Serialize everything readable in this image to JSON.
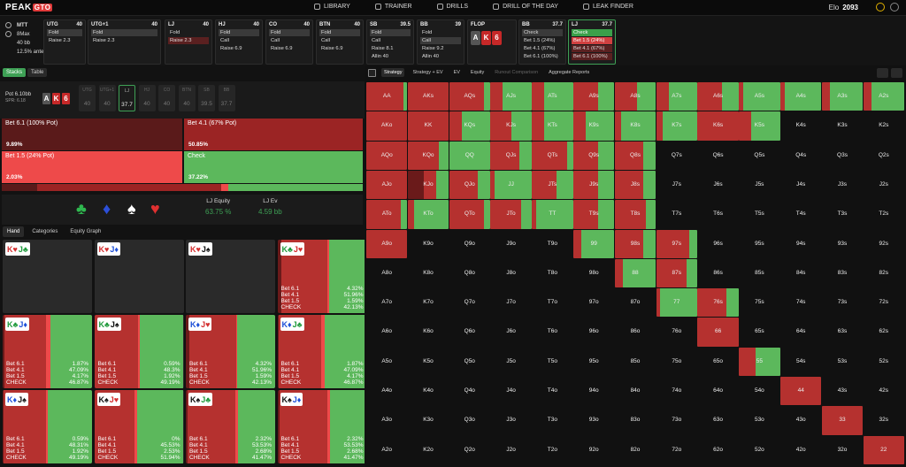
{
  "nav": {
    "logo_main": "PEAK",
    "logo_accent": "GTO",
    "items": [
      "LIBRARY",
      "TRAINER",
      "DRILLS",
      "DRILL OF THE DAY",
      "LEAK FINDER"
    ],
    "elo_label": "Elo",
    "elo_value": "2093"
  },
  "game_info": {
    "format": "MTT",
    "max": "8Max",
    "stack": "40 bb",
    "ante": "12.5% ante"
  },
  "seats": [
    {
      "pos": "UTG",
      "stack": "40",
      "actions": [
        {
          "label": "Fold",
          "state": "sel"
        },
        {
          "label": "Raise 2.3",
          "state": ""
        }
      ]
    },
    {
      "pos": "UTG+1",
      "stack": "40",
      "actions": [
        {
          "label": "Fold",
          "state": "sel"
        },
        {
          "label": "Raise 2.3",
          "state": ""
        }
      ]
    },
    {
      "pos": "LJ",
      "stack": "40",
      "actions": [
        {
          "label": "Fold",
          "state": ""
        },
        {
          "label": "Raise 2.3",
          "state": "red"
        }
      ]
    },
    {
      "pos": "HJ",
      "stack": "40",
      "actions": [
        {
          "label": "Fold",
          "state": "sel"
        },
        {
          "label": "Call",
          "state": ""
        },
        {
          "label": "Raise 6.9",
          "state": ""
        }
      ]
    },
    {
      "pos": "CO",
      "stack": "40",
      "actions": [
        {
          "label": "Fold",
          "state": "sel"
        },
        {
          "label": "Call",
          "state": ""
        },
        {
          "label": "Raise 6.9",
          "state": ""
        }
      ]
    },
    {
      "pos": "BTN",
      "stack": "40",
      "actions": [
        {
          "label": "Fold",
          "state": "sel"
        },
        {
          "label": "Call",
          "state": ""
        },
        {
          "label": "Raise 6.9",
          "state": ""
        }
      ]
    },
    {
      "pos": "SB",
      "stack": "39.5",
      "actions": [
        {
          "label": "Fold",
          "state": "sel"
        },
        {
          "label": "Call",
          "state": ""
        },
        {
          "label": "Raise 8.1",
          "state": ""
        },
        {
          "label": "Allin 40",
          "state": ""
        }
      ]
    },
    {
      "pos": "BB",
      "stack": "39",
      "actions": [
        {
          "label": "Fold",
          "state": ""
        },
        {
          "label": "Call",
          "state": "sel"
        },
        {
          "label": "Raise 9.2",
          "state": ""
        },
        {
          "label": "Allin 40",
          "state": ""
        }
      ]
    }
  ],
  "flop": {
    "label": "FLOP",
    "cards": [
      {
        "rank": "A",
        "color": "#555555"
      },
      {
        "rank": "K",
        "color": "#c62828"
      },
      {
        "rank": "6",
        "color": "#c62828"
      }
    ]
  },
  "bb_panel": {
    "pos": "BB",
    "stack": "37.7",
    "actions": [
      {
        "label": "Check",
        "state": "sel"
      },
      {
        "label": "Bet 1.5 (24%)",
        "state": ""
      },
      {
        "label": "Bet 4.1 (67%)",
        "state": ""
      },
      {
        "label": "Bet 6.1 (100%)",
        "state": ""
      }
    ]
  },
  "lj_panel": {
    "pos": "LJ",
    "stack": "37.7",
    "actions": [
      {
        "label": "Check",
        "state": "grnsel"
      },
      {
        "label": "Bet 1.5 (24%)",
        "state": "redsel"
      },
      {
        "label": "Bet 4.1 (67%)",
        "state": "red"
      },
      {
        "label": "Bet 6.1 (100%)",
        "state": "red"
      }
    ]
  },
  "left_tabs": [
    "Stacks",
    "Table"
  ],
  "pot": {
    "label": "Pot",
    "value": "6.10bb",
    "spr": "SPR: 6.18"
  },
  "pot_slots": [
    {
      "pos": "UTG",
      "stack": "40"
    },
    {
      "pos": "UTG+1",
      "stack": "40"
    },
    {
      "pos": "LJ",
      "stack": "37.7"
    },
    {
      "pos": "HJ",
      "stack": "40"
    },
    {
      "pos": "CO",
      "stack": "40"
    },
    {
      "pos": "BTN",
      "stack": "40"
    },
    {
      "pos": "SB",
      "stack": "39.5"
    },
    {
      "pos": "BB",
      "stack": "37.7"
    }
  ],
  "strategy": [
    {
      "label": "Bet 6.1 (100% Pot)",
      "pct": "9.89%",
      "color": "#5a1a1a"
    },
    {
      "label": "Bet 4.1 (67% Pot)",
      "pct": "50.85%",
      "color": "#9b2424"
    },
    {
      "label": "Bet 1.5 (24% Pot)",
      "pct": "2.03%",
      "color": "#ee4a4a"
    },
    {
      "label": "Check",
      "pct": "37.22%",
      "color": "#5cb85c"
    }
  ],
  "freq_segments": [
    9.89,
    50.85,
    2.03,
    37.22
  ],
  "summary": {
    "eq_label": "LJ Equity",
    "eq_value": "63.75 %",
    "ev_label": "LJ Ev",
    "ev_value": "4.59 bb"
  },
  "hand_tabs": [
    "Hand",
    "Categories",
    "Equity Graph"
  ],
  "combos": [
    {
      "c1": "K♥",
      "c2": "J♣",
      "mix": null,
      "stats": null
    },
    {
      "c1": "K♥",
      "c2": "J♦",
      "mix": null,
      "stats": null
    },
    {
      "c1": "K♥",
      "c2": "J♠",
      "mix": null,
      "stats": null
    },
    {
      "c1": "K♣",
      "c2": "J♥",
      "mix": [
        4.32,
        51.96,
        1.59,
        42.13
      ],
      "stats": [
        "4.32%",
        "51.96%",
        "1.59%",
        "42.13%"
      ]
    },
    {
      "c1": "K♣",
      "c2": "J♦",
      "mix": [
        1.87,
        47.09,
        4.17,
        46.87
      ],
      "stats": [
        "1.87%",
        "47.09%",
        "4.17%",
        "46.87%"
      ]
    },
    {
      "c1": "K♣",
      "c2": "J♠",
      "mix": [
        0.59,
        48.31,
        1.92,
        49.19
      ],
      "stats": [
        "0.59%",
        "48.3%",
        "1.92%",
        "49.19%"
      ]
    },
    {
      "c1": "K♦",
      "c2": "J♥",
      "mix": [
        4.32,
        51.96,
        1.59,
        42.13
      ],
      "stats": [
        "4.32%",
        "51.96%",
        "1.59%",
        "42.13%"
      ]
    },
    {
      "c1": "K♦",
      "c2": "J♣",
      "mix": [
        1.87,
        47.09,
        4.17,
        46.87
      ],
      "stats": [
        "1.87%",
        "47.09%",
        "4.17%",
        "46.87%"
      ]
    },
    {
      "c1": "K♦",
      "c2": "J♠",
      "mix": [
        0.59,
        48.31,
        1.92,
        49.19
      ],
      "stats": [
        "0.59%",
        "48.31%",
        "1.92%",
        "49.19%"
      ]
    },
    {
      "c1": "K♠",
      "c2": "J♥",
      "mix": [
        0,
        45.53,
        2.53,
        51.94
      ],
      "stats": [
        "0%",
        "45.53%",
        "2.53%",
        "51.94%"
      ]
    },
    {
      "c1": "K♠",
      "c2": "J♣",
      "mix": [
        2.32,
        53.53,
        2.68,
        41.47
      ],
      "stats": [
        "2.32%",
        "53.53%",
        "2.68%",
        "41.47%"
      ]
    },
    {
      "c1": "K♠",
      "c2": "J♦",
      "mix": [
        2.32,
        53.53,
        2.68,
        41.47
      ],
      "stats": [
        "2.32%",
        "53.53%",
        "2.68%",
        "41.47%"
      ]
    }
  ],
  "combo_stat_labels": [
    "Bet 6.1",
    "Bet 4.1",
    "Bet 1.5",
    "CHECK"
  ],
  "grid_tabs": [
    "Strategy",
    "Strategy + EV",
    "EV",
    "Equity",
    "Runout Comparison",
    "Aggregate Reports"
  ],
  "ranks": [
    "A",
    "K",
    "Q",
    "J",
    "T",
    "9",
    "8",
    "7",
    "6",
    "5",
    "4",
    "3",
    "2"
  ],
  "colors": {
    "green": "#5cb85c",
    "red": "#b5312f",
    "darkred": "#7a1c1c",
    "brightred": "#ee4a4a"
  },
  "grid_mix": {
    "AA": [
      0,
      90,
      0,
      10
    ],
    "AKs": [
      0,
      100,
      0,
      0
    ],
    "AQs": [
      0,
      85,
      0,
      15
    ],
    "AJs": [
      0,
      30,
      0,
      70
    ],
    "ATs": [
      0,
      30,
      0,
      70
    ],
    "A9s": [
      0,
      60,
      0,
      40
    ],
    "A8s": [
      0,
      55,
      0,
      45
    ],
    "A7s": [
      0,
      30,
      0,
      70
    ],
    "A6s": [
      0,
      60,
      0,
      40
    ],
    "A5s": [
      0,
      10,
      0,
      90
    ],
    "A4s": [
      0,
      10,
      0,
      90
    ],
    "A3s": [
      0,
      20,
      0,
      80
    ],
    "A2s": [
      0,
      20,
      0,
      80
    ],
    "AKo": [
      0,
      100,
      0,
      0
    ],
    "KK": [
      0,
      100,
      0,
      0
    ],
    "KQs": [
      0,
      30,
      0,
      70
    ],
    "KJs": [
      0,
      50,
      0,
      50
    ],
    "KTs": [
      0,
      30,
      0,
      70
    ],
    "K9s": [
      0,
      30,
      0,
      70
    ],
    "K8s": [
      0,
      15,
      0,
      85
    ],
    "K7s": [
      0,
      15,
      0,
      85
    ],
    "K6s": [
      0,
      100,
      0,
      0
    ],
    "K5s": [
      0,
      30,
      0,
      70
    ],
    "AQo": [
      0,
      100,
      0,
      0
    ],
    "KQo": [
      0,
      75,
      0,
      25
    ],
    "QQ": [
      0,
      0,
      0,
      100
    ],
    "QJs": [
      0,
      70,
      0,
      30
    ],
    "QTs": [
      0,
      85,
      0,
      15
    ],
    "Q9s": [
      0,
      60,
      0,
      40
    ],
    "Q8s": [
      0,
      70,
      0,
      30
    ],
    "AJo": [
      0,
      100,
      0,
      0
    ],
    "KJo": [
      40,
      30,
      0,
      30
    ],
    "QJo": [
      0,
      70,
      0,
      30
    ],
    "JJ": [
      0,
      10,
      0,
      90
    ],
    "JTs": [
      0,
      60,
      0,
      40
    ],
    "J9s": [
      0,
      60,
      0,
      40
    ],
    "J8s": [
      0,
      70,
      0,
      30
    ],
    "ATo": [
      0,
      85,
      0,
      15
    ],
    "KTo": [
      0,
      15,
      0,
      85
    ],
    "QTo": [
      0,
      85,
      0,
      15
    ],
    "JTo": [
      0,
      75,
      0,
      25
    ],
    "TT": [
      0,
      10,
      0,
      90
    ],
    "T9s": [
      0,
      60,
      0,
      40
    ],
    "T8s": [
      0,
      75,
      0,
      25
    ],
    "A9o": [
      0,
      100,
      0,
      0
    ],
    "99": [
      0,
      20,
      0,
      80
    ],
    "98s": [
      0,
      70,
      0,
      30
    ],
    "97s": [
      0,
      80,
      0,
      20
    ],
    "88": [
      0,
      20,
      0,
      80
    ],
    "87s": [
      0,
      75,
      0,
      25
    ],
    "77": [
      0,
      10,
      0,
      90
    ],
    "76s": [
      0,
      70,
      0,
      30
    ],
    "66": [
      0,
      100,
      0,
      0
    ],
    "55": [
      0,
      40,
      0,
      60
    ],
    "44": [
      0,
      100,
      0,
      0
    ],
    "33": [
      0,
      100,
      0,
      0
    ],
    "22": [
      0,
      100,
      0,
      0
    ]
  }
}
